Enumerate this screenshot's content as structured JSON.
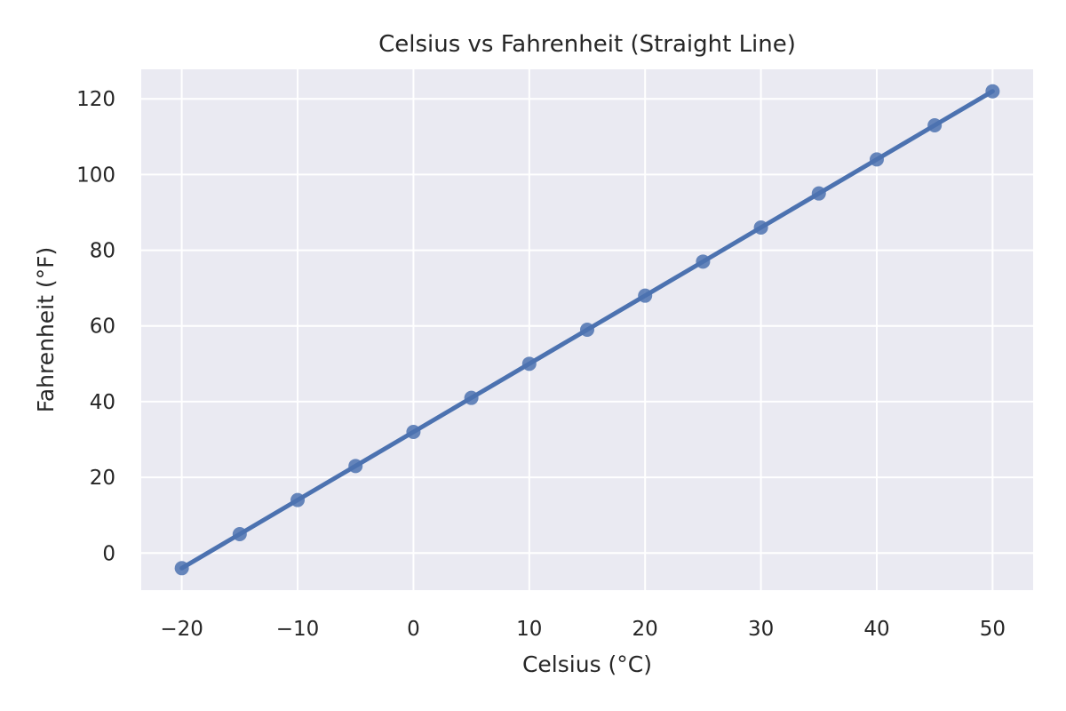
{
  "chart_data": {
    "type": "line",
    "title": "Celsius vs Fahrenheit (Straight Line)",
    "xlabel": "Celsius (°C)",
    "ylabel": "Fahrenheit (°F)",
    "xlim": [
      -23.5,
      53.5
    ],
    "ylim": [
      -9.8,
      127.8
    ],
    "grid": true,
    "x_ticks": [
      -20,
      -10,
      0,
      10,
      20,
      30,
      40,
      50
    ],
    "x_tick_labels": [
      "−20",
      "−10",
      "0",
      "10",
      "20",
      "30",
      "40",
      "50"
    ],
    "y_ticks": [
      0,
      20,
      40,
      60,
      80,
      100,
      120
    ],
    "y_tick_labels": [
      "0",
      "20",
      "40",
      "60",
      "80",
      "100",
      "120"
    ],
    "series": [
      {
        "x": [
          -20,
          -15,
          -10,
          -5,
          0,
          5,
          10,
          15,
          20,
          25,
          30,
          35,
          40,
          45,
          50
        ],
        "y": [
          -4,
          5,
          14,
          23,
          32,
          41,
          50,
          59,
          68,
          77,
          86,
          95,
          104,
          113,
          122
        ],
        "color": "#4c72b0"
      }
    ],
    "colors": {
      "plot_background": "#eaeaf2",
      "grid": "#ffffff",
      "line": "#4c72b0"
    }
  }
}
